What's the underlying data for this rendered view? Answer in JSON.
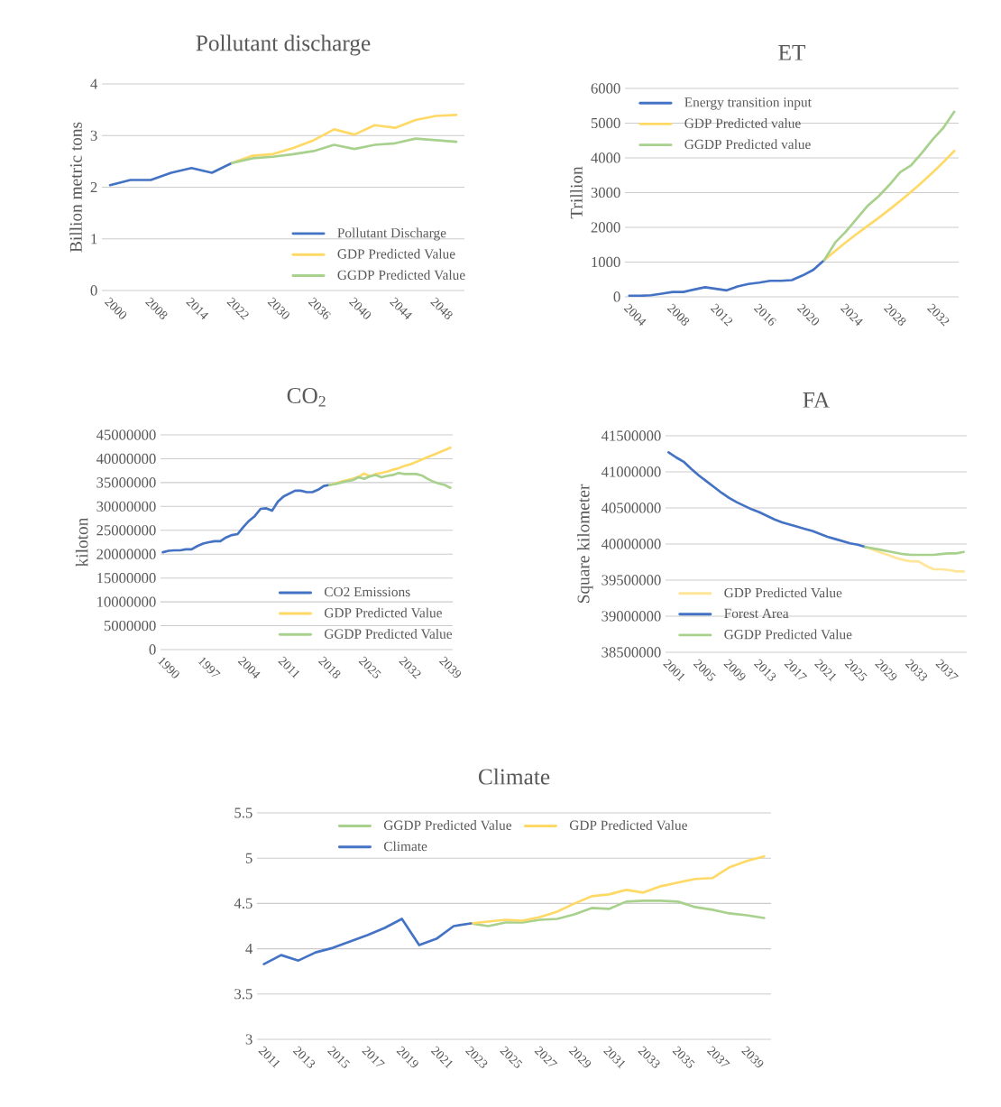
{
  "chart_data": [
    {
      "type": "line",
      "title": "Pollutant discharge",
      "ylabel": "Billion metric tons",
      "categories": [
        "2000",
        null,
        "2008",
        null,
        "2014",
        null,
        "2022",
        null,
        "2030",
        null,
        "2036",
        null,
        "2040",
        null,
        "2044",
        null,
        "2048",
        null
      ],
      "series": [
        {
          "name": "Pollutant Discharge",
          "color": "#4472c4",
          "values": [
            2.04,
            2.14,
            2.14,
            2.28,
            2.37,
            2.28,
            2.47,
            null,
            null,
            null,
            null,
            null,
            null,
            null,
            null,
            null,
            null,
            null
          ]
        },
        {
          "name": "GDP Predicted Value",
          "color": "#ffd966",
          "values": [
            null,
            null,
            null,
            null,
            null,
            null,
            2.47,
            2.61,
            2.64,
            2.76,
            2.91,
            3.12,
            3.02,
            3.2,
            3.15,
            3.3,
            3.38,
            3.4
          ]
        },
        {
          "name": "GGDP Predicted Value",
          "color": "#a9d18e",
          "values": [
            null,
            null,
            null,
            null,
            null,
            null,
            2.47,
            2.56,
            2.59,
            2.64,
            2.7,
            2.82,
            2.74,
            2.82,
            2.85,
            2.94,
            2.91,
            2.88
          ]
        }
      ],
      "ylim": [
        0,
        4
      ],
      "yticks": [
        0,
        1,
        2,
        3,
        4
      ],
      "grid": "y",
      "legend": "bottom right"
    },
    {
      "type": "line",
      "title": "ET",
      "ylabel": "Trillion",
      "categories": [
        "2004",
        null,
        null,
        null,
        "2008",
        null,
        null,
        null,
        "2012",
        null,
        null,
        null,
        "2016",
        null,
        null,
        null,
        "2020",
        null,
        null,
        null,
        "2024",
        null,
        null,
        null,
        "2028",
        null,
        null,
        null,
        "2032",
        null,
        null
      ],
      "series": [
        {
          "name": "Energy transition input",
          "color": "#4472c4",
          "values": [
            30,
            30,
            45,
            90,
            140,
            140,
            210,
            275,
            230,
            185,
            300,
            370,
            410,
            460,
            460,
            480,
            615,
            780,
            1060,
            null,
            null,
            null,
            null,
            null,
            null,
            null,
            null,
            null,
            null,
            null,
            null
          ]
        },
        {
          "name": "GDP Predicted value",
          "color": "#ffd966",
          "values": [
            null,
            null,
            null,
            null,
            null,
            null,
            null,
            null,
            null,
            null,
            null,
            null,
            null,
            null,
            null,
            null,
            null,
            null,
            1060,
            1320,
            1570,
            1810,
            2040,
            2270,
            2510,
            2760,
            3020,
            3290,
            3580,
            3880,
            4200
          ]
        },
        {
          "name": "GGDP Predicted value",
          "color": "#a9d18e",
          "values": [
            null,
            null,
            null,
            null,
            null,
            null,
            null,
            null,
            null,
            null,
            null,
            null,
            null,
            null,
            null,
            null,
            null,
            null,
            1060,
            1560,
            1880,
            2250,
            2620,
            2890,
            3220,
            3590,
            3780,
            4140,
            4530,
            4870,
            5330
          ]
        }
      ],
      "ylim": [
        0,
        6000
      ],
      "yticks": [
        0,
        1000,
        2000,
        3000,
        4000,
        5000,
        6000
      ],
      "grid": "y",
      "legend": "top left"
    },
    {
      "type": "line",
      "title": "CO$_{2}$",
      "ylabel": "kiloton",
      "categories": [
        "1990",
        null,
        null,
        null,
        null,
        null,
        null,
        "1997",
        null,
        null,
        null,
        null,
        null,
        null,
        "2004",
        null,
        null,
        null,
        null,
        null,
        null,
        "2011",
        null,
        null,
        null,
        null,
        null,
        null,
        "2018",
        null,
        null,
        null,
        null,
        null,
        null,
        "2025",
        null,
        null,
        null,
        null,
        null,
        null,
        "2032",
        null,
        null,
        null,
        null,
        null,
        null,
        "2039",
        null
      ],
      "series": [
        {
          "name": "CO2 Emissions",
          "color": "#4472c4",
          "values": [
            20400000,
            20700000,
            20800000,
            20800000,
            21000000,
            21000000,
            21700000,
            22200000,
            22500000,
            22700000,
            22700000,
            23500000,
            24000000,
            24200000,
            25700000,
            27000000,
            28000000,
            29500000,
            29600000,
            29100000,
            31000000,
            32100000,
            32700000,
            33300000,
            33300000,
            33000000,
            33000000,
            33500000,
            34300000,
            34500000,
            null,
            null,
            null,
            null,
            null,
            null,
            null,
            null,
            null,
            null,
            null,
            null,
            null,
            null,
            null,
            null,
            null,
            null,
            null,
            null,
            null
          ]
        },
        {
          "name": "GDP Predicted Value",
          "color": "#ffd966",
          "values": [
            null,
            null,
            null,
            null,
            null,
            null,
            null,
            null,
            null,
            null,
            null,
            null,
            null,
            null,
            null,
            null,
            null,
            null,
            null,
            null,
            null,
            null,
            null,
            null,
            null,
            null,
            null,
            null,
            null,
            34500000,
            34800000,
            35200000,
            35500000,
            35800000,
            36200000,
            36900000,
            36300000,
            36800000,
            37000000,
            37300000,
            37700000,
            38000000,
            38500000,
            38800000,
            39300000,
            39800000,
            40300000,
            40800000,
            41300000,
            41800000,
            42300000
          ]
        },
        {
          "name": "GGDP Predicted Value",
          "color": "#a9d18e",
          "values": [
            null,
            null,
            null,
            null,
            null,
            null,
            null,
            null,
            null,
            null,
            null,
            null,
            null,
            null,
            null,
            null,
            null,
            null,
            null,
            null,
            null,
            null,
            null,
            null,
            null,
            null,
            null,
            null,
            null,
            34500000,
            34700000,
            35000000,
            35300000,
            35500000,
            36100000,
            35800000,
            36300000,
            36600000,
            36100000,
            36400000,
            36600000,
            37000000,
            36800000,
            36800000,
            36800000,
            36500000,
            35800000,
            35200000,
            34800000,
            34500000,
            33900000
          ]
        }
      ],
      "ylim": [
        0,
        45000000
      ],
      "yticks": [
        0,
        5000000,
        10000000,
        15000000,
        20000000,
        25000000,
        30000000,
        35000000,
        40000000,
        45000000
      ],
      "grid": "y",
      "legend": "bottom right"
    },
    {
      "type": "line",
      "title": "FA",
      "ylabel": "Square kilometer",
      "categories": [
        "2001",
        null,
        null,
        null,
        "2005",
        null,
        null,
        null,
        "2009",
        null,
        null,
        null,
        "2013",
        null,
        null,
        null,
        "2017",
        null,
        null,
        null,
        "2021",
        null,
        null,
        null,
        "2025",
        null,
        null,
        null,
        "2029",
        null,
        null,
        null,
        "2033",
        null,
        null,
        null,
        "2037",
        null,
        null,
        null
      ],
      "series": [
        {
          "name": "GDP Predicted Value",
          "color": "#ffe699",
          "values": [
            null,
            null,
            null,
            null,
            null,
            null,
            null,
            null,
            null,
            null,
            null,
            null,
            null,
            null,
            null,
            null,
            null,
            null,
            null,
            null,
            null,
            null,
            null,
            null,
            null,
            null,
            39960000,
            39920000,
            39880000,
            39850000,
            39810000,
            39780000,
            39760000,
            39760000,
            39700000,
            39650000,
            39650000,
            39640000,
            39620000,
            39620000
          ]
        },
        {
          "name": "Forest Area",
          "color": "#4472c4",
          "values": [
            41270000,
            41200000,
            41140000,
            41040000,
            40950000,
            40870000,
            40790000,
            40710000,
            40640000,
            40580000,
            40530000,
            40480000,
            40440000,
            40390000,
            40340000,
            40300000,
            40270000,
            40240000,
            40210000,
            40180000,
            40140000,
            40100000,
            40070000,
            40040000,
            40010000,
            39990000,
            39960000,
            null,
            null,
            null,
            null,
            null,
            null,
            null,
            null,
            null,
            null,
            null,
            null,
            null
          ]
        },
        {
          "name": "GGDP Predicted Value",
          "color": "#a9d18e",
          "values": [
            null,
            null,
            null,
            null,
            null,
            null,
            null,
            null,
            null,
            null,
            null,
            null,
            null,
            null,
            null,
            null,
            null,
            null,
            null,
            null,
            null,
            null,
            null,
            null,
            null,
            null,
            39960000,
            39940000,
            39920000,
            39900000,
            39880000,
            39860000,
            39850000,
            39850000,
            39850000,
            39850000,
            39860000,
            39870000,
            39870000,
            39890000
          ]
        }
      ],
      "ylim": [
        38500000,
        41500000
      ],
      "yticks": [
        38500000,
        39000000,
        39500000,
        40000000,
        40500000,
        41000000,
        41500000
      ],
      "grid": "y",
      "legend": "bottom left"
    },
    {
      "type": "line",
      "title": "Climate",
      "categories": [
        "2011",
        null,
        "2013",
        null,
        "2015",
        null,
        "2017",
        null,
        "2019",
        null,
        "2021",
        null,
        "2023",
        null,
        "2025",
        null,
        "2027",
        null,
        "2029",
        null,
        "2031",
        null,
        "2033",
        null,
        "2035",
        null,
        "2037",
        null,
        "2039",
        null
      ],
      "series": [
        {
          "name": "GGDP Predicted Value",
          "color": "#a9d18e",
          "values": [
            null,
            null,
            null,
            null,
            null,
            null,
            null,
            null,
            null,
            null,
            null,
            null,
            4.28,
            4.25,
            4.29,
            4.29,
            4.32,
            4.33,
            4.38,
            4.45,
            4.44,
            4.52,
            4.53,
            4.53,
            4.52,
            4.46,
            4.43,
            4.39,
            4.37,
            4.34
          ]
        },
        {
          "name": "GDP Predicted Value",
          "color": "#ffd966",
          "values": [
            null,
            null,
            null,
            null,
            null,
            null,
            null,
            null,
            null,
            null,
            null,
            null,
            4.28,
            4.3,
            4.32,
            4.31,
            4.35,
            4.41,
            4.5,
            4.58,
            4.6,
            4.65,
            4.62,
            4.69,
            4.73,
            4.77,
            4.78,
            4.9,
            4.97,
            5.02
          ]
        },
        {
          "name": "Climate",
          "color": "#4472c4",
          "values": [
            3.83,
            3.93,
            3.87,
            3.96,
            4.01,
            4.08,
            4.15,
            4.23,
            4.33,
            4.04,
            4.11,
            4.25,
            4.28,
            null,
            null,
            null,
            null,
            null,
            null,
            null,
            null,
            null,
            null,
            null,
            null,
            null,
            null,
            null,
            null,
            null
          ]
        }
      ],
      "ylim": [
        3,
        5.5
      ],
      "yticks": [
        3,
        3.5,
        4,
        4.5,
        5,
        5.5
      ],
      "grid": "y",
      "legend": "top"
    }
  ]
}
